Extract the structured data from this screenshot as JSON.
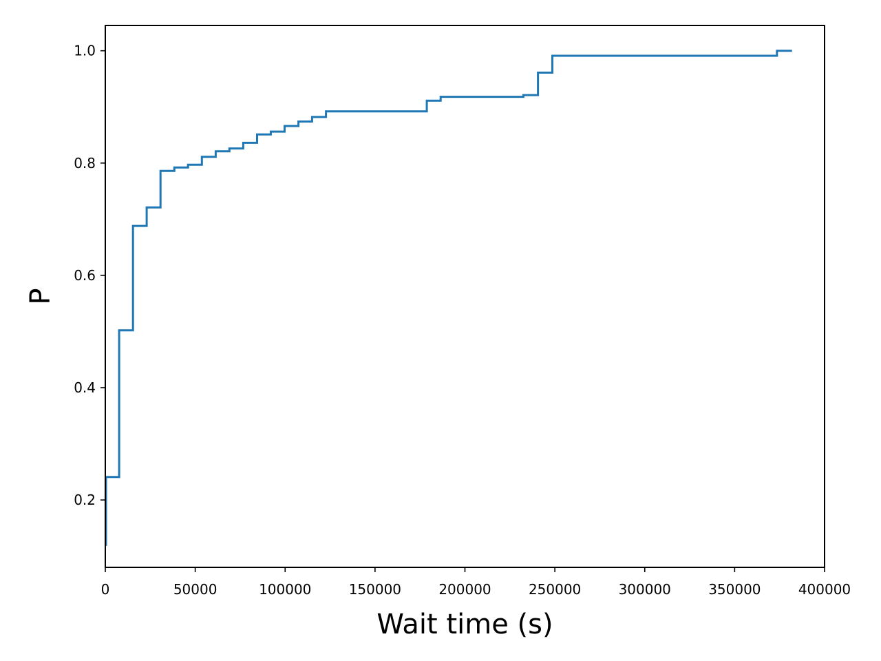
{
  "chart_data": {
    "type": "line",
    "step": "post",
    "title": "",
    "xlabel": "Wait time (s)",
    "ylabel": "P",
    "xlim": [
      0,
      400000
    ],
    "ylim": [
      0.08,
      1.045
    ],
    "grid": false,
    "legend": "none",
    "xticks": [
      0,
      50000,
      100000,
      150000,
      200000,
      250000,
      300000,
      350000,
      400000
    ],
    "xtick_labels": [
      "0",
      "50000",
      "100000",
      "150000",
      "200000",
      "250000",
      "300000",
      "350000",
      "400000"
    ],
    "yticks": [
      0.2,
      0.4,
      0.6,
      0.8,
      1.0
    ],
    "ytick_labels": [
      "0.2",
      "0.4",
      "0.6",
      "0.8",
      "1.0"
    ],
    "series": [
      {
        "color": "#1f77b4",
        "x": [
          0,
          400,
          7700,
          15400,
          23000,
          30700,
          38400,
          46000,
          53700,
          61400,
          69000,
          76700,
          84400,
          92000,
          99700,
          107400,
          115000,
          122700,
          130000,
          178800,
          186500,
          232500,
          240600,
          248600,
          373500,
          381900
        ],
        "y": [
          0.12,
          0.241,
          0.502,
          0.688,
          0.721,
          0.786,
          0.792,
          0.797,
          0.811,
          0.821,
          0.826,
          0.836,
          0.851,
          0.856,
          0.866,
          0.874,
          0.882,
          0.892,
          0.892,
          0.911,
          0.918,
          0.921,
          0.961,
          0.991,
          1.0,
          1.0
        ]
      }
    ]
  }
}
